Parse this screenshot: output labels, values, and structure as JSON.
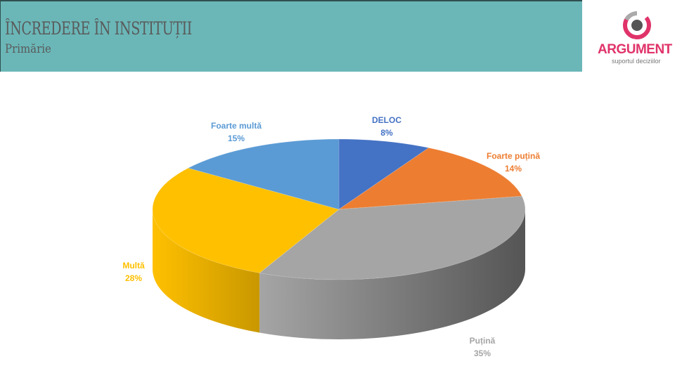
{
  "header": {
    "title": "ÎNCREDERE ÎN INSTITUȚII",
    "subtitle": "Primărie"
  },
  "logo": {
    "name": "ARGUMENT",
    "tagline": "suportul deciziilor"
  },
  "chart_data": {
    "type": "pie",
    "style": "3d",
    "categories": [
      "DELOC",
      "Foarte puțină",
      "Puțină",
      "Multă",
      "Foarte multă"
    ],
    "values": [
      8,
      14,
      35,
      28,
      15
    ],
    "labels": [
      "8%",
      "14%",
      "35%",
      "28%",
      "15%"
    ],
    "colors": [
      "#4472c4",
      "#ed7d31",
      "#a5a5a5",
      "#ffc000",
      "#5b9bd5"
    ],
    "side_colors": [
      "#2f5597",
      "#c55a11",
      "#555555",
      "#c99800",
      "#3f7fb8"
    ],
    "label_colors": [
      "#4472c4",
      "#ed7d31",
      "#a5a5a5",
      "#ffc000",
      "#5b9bd5"
    ],
    "legend": "none"
  }
}
